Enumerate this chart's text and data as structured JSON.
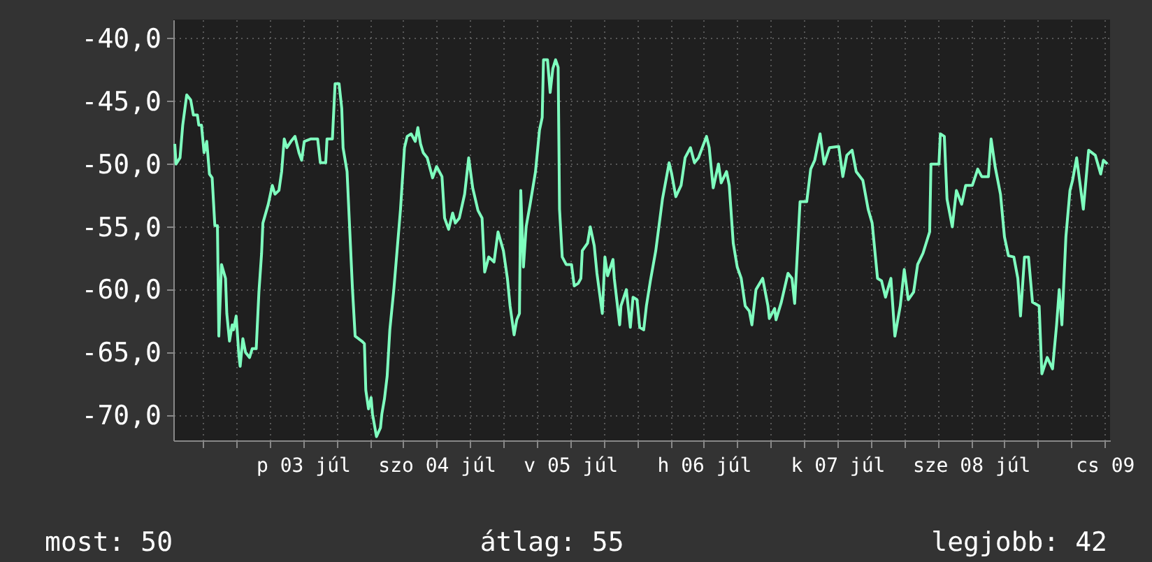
{
  "chart_data": {
    "type": "line",
    "x": [
      "--07-02T12:58",
      "--07-02T13:12",
      "--07-02T13:55",
      "--07-02T14:24",
      "--07-02T15:07",
      "--07-02T15:50",
      "--07-02T16:19",
      "--07-02T17:02",
      "--07-02T17:17",
      "--07-02T17:46",
      "--07-02T18:14",
      "--07-02T18:43",
      "--07-02T19:12",
      "--07-02T19:41",
      "--07-02T20:10",
      "--07-02T20:38",
      "--07-02T20:53",
      "--07-02T21:22",
      "--07-02T22:05",
      "--07-02T22:19",
      "--07-02T22:48",
      "--07-02T23:17",
      "--07-02T23:31",
      "--07-03T00:00",
      "--07-03T00:29",
      "--07-03T00:43",
      "--07-03T01:12",
      "--07-03T01:41",
      "--07-03T02:24",
      "--07-03T02:53",
      "--07-03T03:36",
      "--07-03T04:05",
      "--07-03T04:34",
      "--07-03T04:48",
      "--07-03T05:46",
      "--07-03T06:29",
      "--07-03T06:58",
      "--07-03T07:41",
      "--07-03T08:10",
      "--07-03T08:38",
      "--07-03T09:07",
      "--07-03T09:50",
      "--07-03T10:34",
      "--07-03T11:17",
      "--07-03T11:46",
      "--07-03T12:14",
      "--07-03T13:26",
      "--07-03T14:38",
      "--07-03T15:07",
      "--07-03T16:05",
      "--07-03T16:19",
      "--07-03T17:17",
      "--07-03T17:46",
      "--07-03T18:29",
      "--07-03T18:58",
      "--07-03T19:12",
      "--07-03T19:55",
      "--07-03T20:53",
      "--07-03T21:22",
      "--07-03T22:34",
      "--07-03T23:02",
      "--07-03T23:17",
      "--07-03T23:46",
      "--07-04T00:14",
      "--07-04T00:29",
      "--07-04T01:12",
      "--07-04T01:55",
      "--07-04T02:10",
      "--07-04T02:38",
      "--07-04T03:07",
      "--07-04T03:36",
      "--07-04T04:19",
      "--07-04T05:31",
      "--07-04T06:14",
      "--07-04T06:43",
      "--07-04T07:26",
      "--07-04T08:10",
      "--07-04T08:38",
      "--07-04T09:07",
      "--07-04T09:36",
      "--07-04T10:19",
      "--07-04T11:17",
      "--07-04T12:00",
      "--07-04T12:58",
      "--07-04T13:26",
      "--07-04T14:10",
      "--07-04T14:53",
      "--07-04T15:22",
      "--07-04T16:05",
      "--07-04T17:02",
      "--07-04T17:46",
      "--07-04T18:29",
      "--07-04T19:26",
      "--07-04T20:10",
      "--07-04T20:38",
      "--07-04T21:22",
      "--07-04T22:19",
      "--07-04T23:02",
      "--07-05T00:00",
      "--07-05T00:43",
      "--07-05T01:12",
      "--07-05T01:55",
      "--07-05T02:24",
      "--07-05T02:53",
      "--07-05T03:07",
      "--07-05T03:36",
      "--07-05T04:05",
      "--07-05T04:48",
      "--07-05T05:46",
      "--07-05T06:29",
      "--07-05T06:58",
      "--07-05T07:12",
      "--07-05T07:55",
      "--07-05T08:24",
      "--07-05T08:53",
      "--07-05T09:22",
      "--07-05T09:50",
      "--07-05T10:05",
      "--07-05T10:34",
      "--07-05T11:17",
      "--07-05T12:14",
      "--07-05T12:43",
      "--07-05T13:26",
      "--07-05T13:55",
      "--07-05T14:10",
      "--07-05T15:07",
      "--07-05T15:36",
      "--07-05T16:19",
      "--07-05T16:48",
      "--07-05T17:46",
      "--07-05T18:14",
      "--07-05T18:43",
      "--07-05T19:41",
      "--07-05T19:55",
      "--07-05T20:53",
      "--07-05T21:07",
      "--07-05T22:05",
      "--07-05T22:48",
      "--07-05T23:17",
      "--07-06T00:00",
      "--07-06T00:29",
      "--07-06T01:12",
      "--07-06T01:41",
      "--07-06T02:24",
      "--07-06T03:22",
      "--07-06T04:34",
      "--07-06T05:46",
      "--07-06T06:14",
      "--07-06T06:58",
      "--07-06T07:55",
      "--07-06T08:38",
      "--07-06T09:36",
      "--07-06T10:19",
      "--07-06T11:02",
      "--07-06T12:29",
      "--07-06T12:58",
      "--07-06T13:41",
      "--07-06T14:38",
      "--07-06T15:07",
      "--07-06T16:05",
      "--07-06T16:34",
      "--07-06T17:17",
      "--07-06T18:00",
      "--07-06T18:43",
      "--07-06T19:26",
      "--07-06T20:10",
      "--07-06T20:38",
      "--07-06T21:22",
      "--07-06T22:34",
      "--07-06T23:31",
      "--07-06T23:46",
      "--07-07T00:43",
      "--07-07T00:58",
      "--07-07T01:55",
      "--07-07T03:07",
      "--07-07T03:50",
      "--07-07T04:19",
      "--07-07T05:17",
      "--07-07T06:29",
      "--07-07T07:12",
      "--07-07T07:55",
      "--07-07T08:53",
      "--07-07T09:36",
      "--07-07T10:34",
      "--07-07T12:14",
      "--07-07T12:58",
      "--07-07T13:41",
      "--07-07T14:38",
      "--07-07T15:22",
      "--07-07T16:34",
      "--07-07T17:31",
      "--07-07T18:14",
      "--07-07T19:12",
      "--07-07T19:55",
      "--07-07T20:38",
      "--07-07T21:36",
      "--07-07T22:19",
      "--07-07T23:17",
      "--07-08T00:00",
      "--07-08T00:43",
      "--07-08T01:41",
      "--07-08T02:24",
      "--07-08T03:22",
      "--07-08T04:34",
      "--07-08T04:48",
      "--07-08T06:14",
      "--07-08T06:29",
      "--07-08T07:12",
      "--07-08T07:41",
      "--07-08T08:38",
      "--07-08T09:22",
      "--07-08T10:19",
      "--07-08T11:02",
      "--07-08T12:14",
      "--07-08T13:12",
      "--07-08T13:55",
      "--07-08T15:07",
      "--07-08T15:36",
      "--07-08T16:19",
      "--07-08T17:17",
      "--07-08T18:00",
      "--07-08T18:43",
      "--07-08T19:41",
      "--07-08T20:24",
      "--07-08T20:53",
      "--07-08T21:36",
      "--07-08T22:19",
      "--07-08T23:02",
      "--07-09T00:14",
      "--07-09T00:43",
      "--07-09T01:41",
      "--07-09T02:38",
      "--07-09T03:22",
      "--07-09T03:50",
      "--07-09T04:19",
      "--07-09T05:02",
      "--07-09T05:46",
      "--07-09T06:14",
      "--07-09T06:58",
      "--07-09T07:26",
      "--07-09T08:10",
      "--07-09T09:07",
      "--07-09T10:19",
      "--07-09T11:17",
      "--07-09T11:46",
      "--07-09T12:29"
    ],
    "series": [
      {
        "color": "#7fffbf",
        "values": [
          -48.4,
          -50.0,
          -49.5,
          -46.9,
          -44.5,
          -44.9,
          -46.1,
          -46.1,
          -46.9,
          -46.9,
          -49.1,
          -48.2,
          -50.8,
          -51.1,
          -54.9,
          -54.9,
          -63.7,
          -58.0,
          -59.1,
          -61.9,
          -64.1,
          -62.8,
          -63.2,
          -62.1,
          -65.2,
          -66.1,
          -63.9,
          -65.0,
          -65.4,
          -64.7,
          -64.7,
          -60.2,
          -57.1,
          -54.7,
          -53.2,
          -51.7,
          -52.4,
          -52.1,
          -50.6,
          -48.0,
          -48.7,
          -48.2,
          -47.8,
          -49.1,
          -49.7,
          -48.2,
          -48.0,
          -48.0,
          -49.9,
          -49.9,
          -48.0,
          -48.0,
          -43.6,
          -43.6,
          -45.6,
          -48.7,
          -50.6,
          -59.9,
          -63.7,
          -64.1,
          -64.3,
          -68.0,
          -69.5,
          -68.6,
          -69.9,
          -71.7,
          -71.0,
          -69.9,
          -68.7,
          -66.9,
          -63.2,
          -60.0,
          -53.6,
          -48.7,
          -47.8,
          -47.6,
          -48.2,
          -47.1,
          -48.4,
          -49.1,
          -49.5,
          -51.1,
          -50.2,
          -51.0,
          -54.3,
          -55.2,
          -53.9,
          -54.7,
          -54.3,
          -52.4,
          -49.5,
          -51.9,
          -53.7,
          -54.3,
          -58.6,
          -57.4,
          -57.8,
          -55.4,
          -56.9,
          -59.1,
          -61.3,
          -63.6,
          -62.4,
          -61.9,
          -52.1,
          -58.2,
          -55.0,
          -53.2,
          -50.6,
          -47.3,
          -46.3,
          -41.7,
          -41.7,
          -44.3,
          -42.4,
          -41.7,
          -42.3,
          -53.6,
          -57.4,
          -58.0,
          -58.0,
          -59.7,
          -59.5,
          -59.1,
          -56.9,
          -56.3,
          -55.0,
          -56.5,
          -58.7,
          -61.9,
          -57.4,
          -58.9,
          -57.6,
          -59.1,
          -62.8,
          -61.3,
          -60.0,
          -63.0,
          -60.6,
          -60.8,
          -63.0,
          -63.2,
          -61.3,
          -59.3,
          -56.9,
          -52.8,
          -49.9,
          -50.8,
          -52.6,
          -51.7,
          -49.5,
          -48.7,
          -49.9,
          -49.5,
          -47.8,
          -48.7,
          -51.9,
          -50.0,
          -51.5,
          -50.6,
          -51.7,
          -56.3,
          -58.2,
          -59.1,
          -61.3,
          -61.7,
          -62.8,
          -60.0,
          -59.1,
          -61.3,
          -62.3,
          -61.5,
          -62.4,
          -61.0,
          -58.7,
          -59.1,
          -61.1,
          -53.0,
          -53.0,
          -50.4,
          -49.7,
          -47.6,
          -50.0,
          -48.7,
          -48.6,
          -51.0,
          -49.3,
          -48.9,
          -50.6,
          -51.3,
          -53.6,
          -54.7,
          -59.1,
          -59.3,
          -60.6,
          -59.1,
          -63.7,
          -61.3,
          -58.4,
          -60.8,
          -60.2,
          -58.0,
          -57.1,
          -55.4,
          -50.0,
          -50.0,
          -47.6,
          -47.8,
          -52.8,
          -55.0,
          -52.1,
          -53.2,
          -51.7,
          -51.7,
          -50.4,
          -51.0,
          -51.0,
          -48.0,
          -50.2,
          -52.4,
          -55.8,
          -57.3,
          -57.4,
          -59.1,
          -62.1,
          -57.4,
          -57.4,
          -61.0,
          -61.3,
          -66.7,
          -65.4,
          -66.3,
          -62.8,
          -60.0,
          -62.8,
          -55.8,
          -52.1,
          -51.3,
          -49.5,
          -51.1,
          -53.6,
          -48.9,
          -49.3,
          -50.8,
          -49.7,
          -50.0
        ]
      }
    ],
    "xlim": [
      "--07-02T12:43",
      "--07-09T12:58"
    ],
    "xticks": [
      {
        "value": "--07-02T18:00",
        "label": null
      },
      {
        "value": "--07-03T00:00",
        "label": null
      },
      {
        "value": "--07-03T06:00",
        "label": null
      },
      {
        "value": "--07-03T12:00",
        "label": "p 03 júl"
      },
      {
        "value": "--07-03T18:00",
        "label": null
      },
      {
        "value": "--07-04T00:00",
        "label": null
      },
      {
        "value": "--07-04T06:00",
        "label": null
      },
      {
        "value": "--07-04T12:00",
        "label": "szo 04 júl"
      },
      {
        "value": "--07-04T18:00",
        "label": null
      },
      {
        "value": "--07-05T00:00",
        "label": null
      },
      {
        "value": "--07-05T06:00",
        "label": null
      },
      {
        "value": "--07-05T12:00",
        "label": "v 05 júl"
      },
      {
        "value": "--07-05T18:00",
        "label": null
      },
      {
        "value": "--07-06T00:00",
        "label": null
      },
      {
        "value": "--07-06T06:00",
        "label": null
      },
      {
        "value": "--07-06T12:00",
        "label": "h 06 júl"
      },
      {
        "value": "--07-06T18:00",
        "label": null
      },
      {
        "value": "--07-07T00:00",
        "label": null
      },
      {
        "value": "--07-07T06:00",
        "label": null
      },
      {
        "value": "--07-07T12:00",
        "label": "k 07 júl"
      },
      {
        "value": "--07-07T18:00",
        "label": null
      },
      {
        "value": "--07-08T00:00",
        "label": null
      },
      {
        "value": "--07-08T06:00",
        "label": null
      },
      {
        "value": "--07-08T12:00",
        "label": "sze 08 júl"
      },
      {
        "value": "--07-08T18:00",
        "label": null
      },
      {
        "value": "--07-09T00:00",
        "label": null
      },
      {
        "value": "--07-09T06:00",
        "label": null
      },
      {
        "value": "--07-09T12:00",
        "label": "cs 09"
      }
    ],
    "ylim": [
      -72,
      -38.5
    ],
    "yticks": [
      {
        "value": -70,
        "label": "-70,0"
      },
      {
        "value": -65,
        "label": "-65,0"
      },
      {
        "value": -60,
        "label": "-60,0"
      },
      {
        "value": -55,
        "label": "-55,0"
      },
      {
        "value": -50,
        "label": "-50,0"
      },
      {
        "value": -45,
        "label": "-45,0"
      },
      {
        "value": -40,
        "label": "-40,0"
      }
    ],
    "grid": true,
    "annotations": [
      "most: 50",
      "átlag: 55",
      "legjobb: 42"
    ]
  }
}
